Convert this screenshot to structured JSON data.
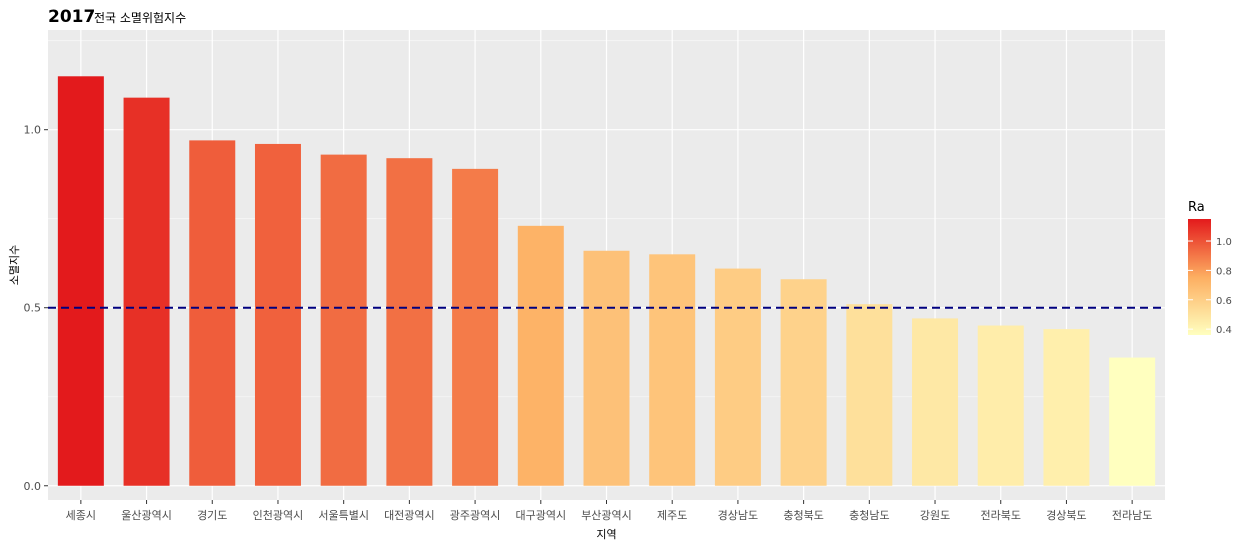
{
  "chart_data": {
    "type": "bar",
    "title": "2017",
    "subtitle": "전국 소멸위험지수",
    "xlabel": "지역",
    "ylabel": "소멸지수",
    "categories": [
      "세종시",
      "울산광역시",
      "경기도",
      "인천광역시",
      "서울특별시",
      "대전광역시",
      "광주광역시",
      "대구광역시",
      "부산광역시",
      "제주도",
      "경상남도",
      "충청북도",
      "충청남도",
      "강원도",
      "전라북도",
      "경상북도",
      "전라남도"
    ],
    "values": [
      1.15,
      1.09,
      0.97,
      0.96,
      0.93,
      0.92,
      0.89,
      0.73,
      0.66,
      0.65,
      0.61,
      0.58,
      0.51,
      0.47,
      0.45,
      0.44,
      0.36
    ],
    "ylim": [
      -0.04,
      1.28
    ],
    "yticks": [
      0.0,
      0.5,
      1.0
    ],
    "ytick_labels": [
      "0.0",
      "0.5",
      "1.0"
    ],
    "reference_line": {
      "value": 0.5,
      "style": "dashed",
      "color": "#000080"
    },
    "grid": true,
    "panel_background": "#ebebeb",
    "legend": {
      "title": "Ra",
      "placement": "right",
      "range": [
        0.36,
        1.15
      ],
      "ticks": [
        1.0,
        0.8,
        0.6,
        0.4
      ],
      "tick_labels": [
        "1.0",
        "0.8",
        "0.6",
        "0.4"
      ],
      "color_low": "#ffffbf",
      "color_mid": "#fdae61",
      "color_high": "#e31a1c"
    }
  }
}
